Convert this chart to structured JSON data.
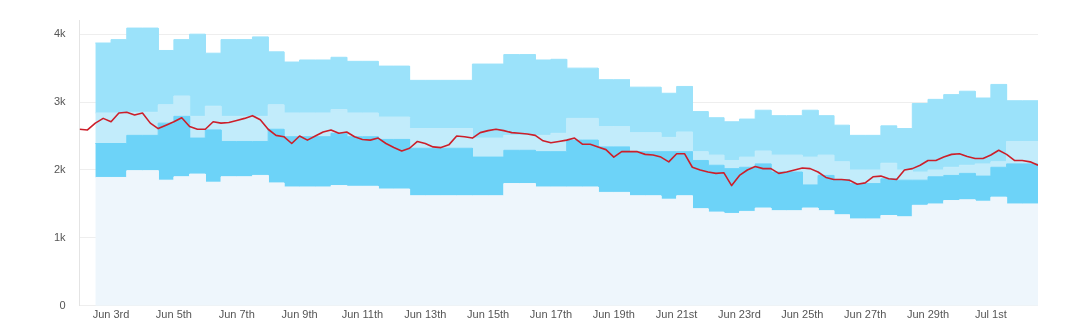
{
  "chart_data": {
    "type": "area",
    "stacked": true,
    "grid": "y",
    "legend": false,
    "xlim": [
      "--06-02T00:00",
      "--07-02T12:00"
    ],
    "xticks": [
      {
        "value": "--06-03",
        "label": "Jun 3rd"
      },
      {
        "value": "--06-05",
        "label": "Jun 5th"
      },
      {
        "value": "--06-07",
        "label": "Jun 7th"
      },
      {
        "value": "--06-09",
        "label": "Jun 9th"
      },
      {
        "value": "--06-11",
        "label": "Jun 11th"
      },
      {
        "value": "--06-13",
        "label": "Jun 13th"
      },
      {
        "value": "--06-15",
        "label": "Jun 15th"
      },
      {
        "value": "--06-17",
        "label": "Jun 17th"
      },
      {
        "value": "--06-19",
        "label": "Jun 19th"
      },
      {
        "value": "--06-21",
        "label": "Jun 21st"
      },
      {
        "value": "--06-23",
        "label": "Jun 23rd"
      },
      {
        "value": "--06-25",
        "label": "Jun 25th"
      },
      {
        "value": "--06-27",
        "label": "Jun 27th"
      },
      {
        "value": "--06-29",
        "label": "Jun 29th"
      },
      {
        "value": "--07-01",
        "label": "Jul 1st"
      }
    ],
    "ylim": [
      0,
      4200
    ],
    "yticks": [
      0,
      {
        "value": 1000,
        "label": "1k"
      },
      {
        "value": 2000,
        "label": "2k"
      },
      {
        "value": 3000,
        "label": "3k"
      },
      {
        "value": 4000,
        "label": "4k"
      }
    ],
    "x": [
      "--06-02T12:00",
      "--06-03T00:00",
      "--06-03T00:00",
      "--06-03T12:00",
      "--06-03T12:00",
      "--06-04T00:00",
      "--06-04T00:00",
      "--06-04T12:00",
      "--06-04T12:00",
      "--06-05T00:00",
      "--06-05T00:00",
      "--06-05T12:00",
      "--06-05T12:00",
      "--06-06T00:00",
      "--06-06T00:00",
      "--06-06T12:00",
      "--06-06T12:00",
      "--06-07T00:00",
      "--06-07T00:00",
      "--06-07T12:00",
      "--06-07T12:00",
      "--06-08T00:00",
      "--06-08T00:00",
      "--06-08T12:00",
      "--06-08T12:00",
      "--06-09T00:00",
      "--06-09T00:00",
      "--06-09T12:00",
      "--06-09T12:00",
      "--06-10T00:00",
      "--06-10T00:00",
      "--06-10T12:00",
      "--06-10T12:00",
      "--06-11T00:00",
      "--06-11T00:00",
      "--06-11T12:00",
      "--06-11T12:00",
      "--06-12T00:00",
      "--06-12T00:00",
      "--06-12T12:00",
      "--06-12T12:00",
      "--06-13T00:00",
      "--06-13T00:00",
      "--06-13T12:00",
      "--06-13T12:00",
      "--06-14T00:00",
      "--06-14T00:00",
      "--06-14T12:00",
      "--06-14T12:00",
      "--06-15T00:00",
      "--06-15T00:00",
      "--06-15T12:00",
      "--06-15T12:00",
      "--06-16T00:00",
      "--06-16T00:00",
      "--06-16T12:00",
      "--06-16T12:00",
      "--06-17T00:00",
      "--06-17T00:00",
      "--06-17T12:00",
      "--06-17T12:00",
      "--06-18T00:00",
      "--06-18T00:00",
      "--06-18T12:00",
      "--06-18T12:00",
      "--06-19T00:00",
      "--06-19T00:00",
      "--06-19T12:00",
      "--06-19T12:00",
      "--06-20T00:00",
      "--06-20T00:00",
      "--06-20T12:00",
      "--06-20T12:00",
      "--06-21T00:00",
      "--06-21T00:00",
      "--06-21T12:00",
      "--06-21T12:00",
      "--06-22T00:00",
      "--06-22T00:00",
      "--06-22T12:00",
      "--06-22T12:00",
      "--06-23T00:00",
      "--06-23T00:00",
      "--06-23T12:00",
      "--06-23T12:00",
      "--06-24T00:00",
      "--06-24T00:00",
      "--06-24T12:00",
      "--06-24T12:00",
      "--06-25T00:00",
      "--06-25T00:00",
      "--06-25T12:00",
      "--06-25T12:00",
      "--06-26T00:00",
      "--06-26T00:00",
      "--06-26T12:00",
      "--06-26T12:00",
      "--06-27T00:00",
      "--06-27T00:00",
      "--06-27T12:00",
      "--06-27T12:00",
      "--06-28T00:00",
      "--06-28T00:00",
      "--06-28T12:00",
      "--06-28T12:00",
      "--06-29T00:00",
      "--06-29T00:00",
      "--06-29T12:00",
      "--06-29T12:00",
      "--06-30T00:00",
      "--06-30T00:00",
      "--06-30T12:00",
      "--06-30T12:00",
      "--07-01T00:00",
      "--07-01T00:00",
      "--07-01T12:00",
      "--07-01T12:00",
      "--07-02T00:00",
      "--07-02T00:00",
      "--07-02T12:00"
    ],
    "series": [
      {
        "color": "#eef6fc",
        "values": [
          1890,
          1890,
          1890,
          1890,
          1990,
          1990,
          1990,
          1990,
          1850,
          1850,
          1900,
          1900,
          1940,
          1940,
          1820,
          1820,
          1900,
          1900,
          1900,
          1900,
          1920,
          1920,
          1810,
          1810,
          1750,
          1750,
          1750,
          1750,
          1750,
          1750,
          1770,
          1770,
          1760,
          1760,
          1760,
          1760,
          1720,
          1720,
          1720,
          1720,
          1620,
          1620,
          1620,
          1620,
          1620,
          1620,
          1620,
          1620,
          1620,
          1620,
          1620,
          1620,
          1800,
          1800,
          1800,
          1800,
          1750,
          1750,
          1750,
          1750,
          1750,
          1750,
          1750,
          1750,
          1670,
          1670,
          1670,
          1670,
          1620,
          1620,
          1620,
          1620,
          1570,
          1570,
          1620,
          1620,
          1430,
          1430,
          1380,
          1380,
          1360,
          1360,
          1390,
          1390,
          1440,
          1440,
          1400,
          1400,
          1400,
          1400,
          1440,
          1440,
          1400,
          1400,
          1340,
          1340,
          1280,
          1280,
          1280,
          1280,
          1330,
          1330,
          1310,
          1310,
          1480,
          1480,
          1500,
          1500,
          1550,
          1550,
          1560,
          1560,
          1540,
          1540,
          1600,
          1600,
          1500,
          1500,
          1500,
          1500
        ]
      },
      {
        "color": "#6dd3f8",
        "values": [
          500,
          500,
          500,
          500,
          520,
          520,
          520,
          520,
          840,
          840,
          890,
          890,
          530,
          530,
          770,
          770,
          520,
          520,
          520,
          520,
          500,
          500,
          790,
          790,
          740,
          740,
          740,
          740,
          740,
          740,
          770,
          770,
          730,
          730,
          730,
          730,
          730,
          730,
          730,
          730,
          700,
          700,
          700,
          700,
          700,
          700,
          700,
          700,
          570,
          570,
          570,
          570,
          490,
          490,
          490,
          490,
          520,
          520,
          520,
          520,
          690,
          690,
          690,
          690,
          670,
          670,
          670,
          670,
          650,
          650,
          650,
          650,
          700,
          700,
          650,
          650,
          710,
          710,
          690,
          690,
          660,
          660,
          650,
          650,
          650,
          650,
          570,
          570,
          570,
          570,
          340,
          340,
          520,
          520,
          520,
          520,
          520,
          520,
          520,
          520,
          540,
          540,
          540,
          540,
          370,
          370,
          400,
          400,
          370,
          370,
          390,
          390,
          370,
          370,
          440,
          440,
          590,
          590,
          590,
          590
        ]
      },
      {
        "color": "#c2ecfb",
        "values": [
          450,
          450,
          450,
          450,
          340,
          340,
          340,
          340,
          270,
          270,
          300,
          300,
          320,
          320,
          350,
          350,
          370,
          370,
          370,
          370,
          370,
          370,
          360,
          360,
          350,
          350,
          350,
          350,
          350,
          350,
          350,
          350,
          350,
          350,
          350,
          350,
          330,
          330,
          330,
          330,
          290,
          290,
          290,
          290,
          290,
          290,
          290,
          290,
          280,
          280,
          280,
          280,
          220,
          220,
          220,
          220,
          240,
          240,
          270,
          270,
          320,
          320,
          320,
          320,
          300,
          300,
          300,
          300,
          280,
          280,
          280,
          280,
          210,
          210,
          290,
          290,
          130,
          130,
          150,
          150,
          120,
          120,
          150,
          150,
          190,
          190,
          250,
          250,
          250,
          250,
          410,
          410,
          300,
          300,
          260,
          260,
          200,
          200,
          200,
          200,
          230,
          230,
          150,
          150,
          120,
          120,
          100,
          100,
          120,
          120,
          120,
          120,
          180,
          180,
          80,
          80,
          330,
          330,
          330,
          330
        ]
      },
      {
        "color": "#9be2fa",
        "values": [
          1030,
          1030,
          1080,
          1080,
          1240,
          1240,
          1240,
          1240,
          800,
          800,
          830,
          830,
          1210,
          1210,
          780,
          780,
          1130,
          1130,
          1130,
          1130,
          1170,
          1170,
          780,
          780,
          750,
          750,
          780,
          780,
          780,
          780,
          770,
          770,
          760,
          760,
          760,
          760,
          750,
          750,
          750,
          750,
          710,
          710,
          710,
          710,
          710,
          710,
          710,
          710,
          1090,
          1090,
          1090,
          1090,
          1190,
          1190,
          1190,
          1190,
          1110,
          1110,
          1090,
          1090,
          740,
          740,
          740,
          740,
          690,
          690,
          690,
          690,
          670,
          670,
          670,
          670,
          650,
          650,
          670,
          670,
          590,
          590,
          550,
          550,
          570,
          570,
          560,
          560,
          600,
          600,
          580,
          580,
          580,
          580,
          690,
          690,
          580,
          580,
          540,
          540,
          510,
          510,
          510,
          510,
          550,
          550,
          610,
          610,
          1010,
          1010,
          1040,
          1040,
          1070,
          1070,
          1090,
          1090,
          970,
          970,
          1140,
          1140,
          600,
          600,
          600,
          600
        ]
      },
      {
        "type": "line",
        "color": "#cc1f2a",
        "x": [
          "--06-02T00:00",
          "--06-02T06:00",
          "--06-02T12:00",
          "--06-02T18:00",
          "--06-03T00:00",
          "--06-03T06:00",
          "--06-03T12:00",
          "--06-03T18:00",
          "--06-04T00:00",
          "--06-04T06:00",
          "--06-04T12:00",
          "--06-04T18:00",
          "--06-05T00:00",
          "--06-05T06:00",
          "--06-05T12:00",
          "--06-05T18:00",
          "--06-06T00:00",
          "--06-06T06:00",
          "--06-06T12:00",
          "--06-06T18:00",
          "--06-07T00:00",
          "--06-07T06:00",
          "--06-07T12:00",
          "--06-07T18:00",
          "--06-08T00:00",
          "--06-08T06:00",
          "--06-08T12:00",
          "--06-08T18:00",
          "--06-09T00:00",
          "--06-09T06:00",
          "--06-09T12:00",
          "--06-09T18:00",
          "--06-10T00:00",
          "--06-10T06:00",
          "--06-10T12:00",
          "--06-10T18:00",
          "--06-11T00:00",
          "--06-11T06:00",
          "--06-11T12:00",
          "--06-11T18:00",
          "--06-12T00:00",
          "--06-12T06:00",
          "--06-12T12:00",
          "--06-12T18:00",
          "--06-13T00:00",
          "--06-13T06:00",
          "--06-13T12:00",
          "--06-13T18:00",
          "--06-14T00:00",
          "--06-14T06:00",
          "--06-14T12:00",
          "--06-14T18:00",
          "--06-15T00:00",
          "--06-15T06:00",
          "--06-15T12:00",
          "--06-15T18:00",
          "--06-16T00:00",
          "--06-16T06:00",
          "--06-16T12:00",
          "--06-16T18:00",
          "--06-17T00:00",
          "--06-17T06:00",
          "--06-17T12:00",
          "--06-17T18:00",
          "--06-18T00:00",
          "--06-18T06:00",
          "--06-18T12:00",
          "--06-18T18:00",
          "--06-19T00:00",
          "--06-19T06:00",
          "--06-19T12:00",
          "--06-19T18:00",
          "--06-20T00:00",
          "--06-20T06:00",
          "--06-20T12:00",
          "--06-20T18:00",
          "--06-21T00:00",
          "--06-21T06:00",
          "--06-21T12:00",
          "--06-21T18:00",
          "--06-22T00:00",
          "--06-22T06:00",
          "--06-22T12:00",
          "--06-22T18:00",
          "--06-23T00:00",
          "--06-23T06:00",
          "--06-23T12:00",
          "--06-23T18:00",
          "--06-24T00:00",
          "--06-24T06:00",
          "--06-24T12:00",
          "--06-24T18:00",
          "--06-25T00:00",
          "--06-25T06:00",
          "--06-25T12:00",
          "--06-25T18:00",
          "--06-26T00:00",
          "--06-26T06:00",
          "--06-26T12:00",
          "--06-26T18:00",
          "--06-27T00:00",
          "--06-27T06:00",
          "--06-27T12:00",
          "--06-27T18:00",
          "--06-28T00:00",
          "--06-28T06:00",
          "--06-28T12:00",
          "--06-28T18:00",
          "--06-29T00:00",
          "--06-29T06:00",
          "--06-29T12:00",
          "--06-29T18:00",
          "--06-30T00:00",
          "--06-30T06:00",
          "--06-30T12:00",
          "--06-30T18:00",
          "--07-01T00:00",
          "--07-01T06:00",
          "--07-01T12:00",
          "--07-01T18:00",
          "--07-02T00:00",
          "--07-02T06:00",
          "--07-02T12:00"
        ],
        "values": [
          2600,
          2590,
          2690,
          2760,
          2710,
          2840,
          2850,
          2810,
          2840,
          2690,
          2610,
          2660,
          2710,
          2770,
          2640,
          2600,
          2600,
          2710,
          2690,
          2700,
          2730,
          2760,
          2800,
          2740,
          2600,
          2510,
          2490,
          2390,
          2500,
          2440,
          2500,
          2560,
          2590,
          2540,
          2560,
          2490,
          2450,
          2440,
          2470,
          2390,
          2330,
          2280,
          2320,
          2420,
          2390,
          2340,
          2330,
          2370,
          2500,
          2490,
          2470,
          2550,
          2580,
          2600,
          2580,
          2550,
          2540,
          2530,
          2510,
          2430,
          2400,
          2420,
          2440,
          2470,
          2380,
          2380,
          2340,
          2300,
          2190,
          2270,
          2270,
          2270,
          2230,
          2220,
          2190,
          2120,
          2240,
          2240,
          2040,
          2000,
          1970,
          1950,
          1960,
          1770,
          1920,
          2000,
          2050,
          2020,
          2020,
          1950,
          1970,
          2000,
          2030,
          2020,
          1970,
          1890,
          1860,
          1860,
          1850,
          1790,
          1810,
          1900,
          1910,
          1870,
          1860,
          2000,
          2020,
          2070,
          2140,
          2140,
          2190,
          2230,
          2240,
          2200,
          2170,
          2170,
          2220,
          2290,
          2230,
          2140,
          2140,
          2120,
          2070
        ]
      }
    ]
  }
}
